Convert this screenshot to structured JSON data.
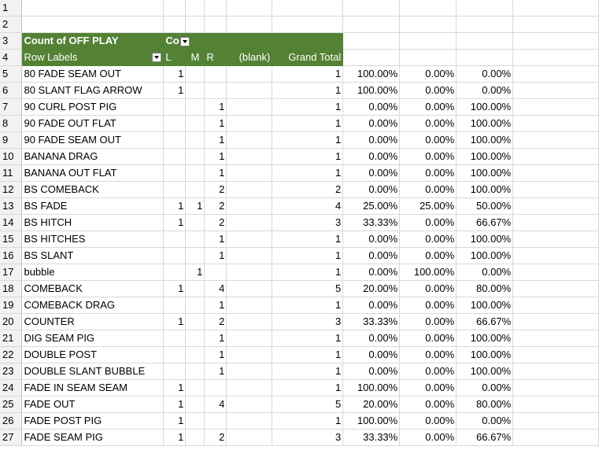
{
  "pivot": {
    "title": "Count of OFF PLAY",
    "col_field_abbrev": "Co",
    "row_labels": "Row Labels",
    "columns": [
      "L",
      "M",
      "R",
      "(blank)",
      "Grand Total"
    ]
  },
  "rows": [
    {
      "num": "5",
      "label": "80 FADE SEAM OUT",
      "L": "1",
      "M": "",
      "R": "",
      "total": "1",
      "p1": "100.00%",
      "p2": "0.00%",
      "p3": "0.00%"
    },
    {
      "num": "6",
      "label": "80 SLANT FLAG ARROW",
      "L": "1",
      "M": "",
      "R": "",
      "total": "1",
      "p1": "100.00%",
      "p2": "0.00%",
      "p3": "0.00%"
    },
    {
      "num": "7",
      "label": "90 CURL POST PIG",
      "L": "",
      "M": "",
      "R": "1",
      "total": "1",
      "p1": "0.00%",
      "p2": "0.00%",
      "p3": "100.00%"
    },
    {
      "num": "8",
      "label": "90 FADE OUT FLAT",
      "L": "",
      "M": "",
      "R": "1",
      "total": "1",
      "p1": "0.00%",
      "p2": "0.00%",
      "p3": "100.00%"
    },
    {
      "num": "9",
      "label": "90 FADE SEAM OUT",
      "L": "",
      "M": "",
      "R": "1",
      "total": "1",
      "p1": "0.00%",
      "p2": "0.00%",
      "p3": "100.00%"
    },
    {
      "num": "10",
      "label": "BANANA DRAG",
      "L": "",
      "M": "",
      "R": "1",
      "total": "1",
      "p1": "0.00%",
      "p2": "0.00%",
      "p3": "100.00%"
    },
    {
      "num": "11",
      "label": "BANANA OUT FLAT",
      "L": "",
      "M": "",
      "R": "1",
      "total": "1",
      "p1": "0.00%",
      "p2": "0.00%",
      "p3": "100.00%"
    },
    {
      "num": "12",
      "label": "BS COMEBACK",
      "L": "",
      "M": "",
      "R": "2",
      "total": "2",
      "p1": "0.00%",
      "p2": "0.00%",
      "p3": "100.00%"
    },
    {
      "num": "13",
      "label": "BS FADE",
      "L": "1",
      "M": "1",
      "R": "2",
      "total": "4",
      "p1": "25.00%",
      "p2": "25.00%",
      "p3": "50.00%"
    },
    {
      "num": "14",
      "label": "BS HITCH",
      "L": "1",
      "M": "",
      "R": "2",
      "total": "3",
      "p1": "33.33%",
      "p2": "0.00%",
      "p3": "66.67%"
    },
    {
      "num": "15",
      "label": "BS HITCHES",
      "L": "",
      "M": "",
      "R": "1",
      "total": "1",
      "p1": "0.00%",
      "p2": "0.00%",
      "p3": "100.00%"
    },
    {
      "num": "16",
      "label": "BS SLANT",
      "L": "",
      "M": "",
      "R": "1",
      "total": "1",
      "p1": "0.00%",
      "p2": "0.00%",
      "p3": "100.00%"
    },
    {
      "num": "17",
      "label": "bubble",
      "L": "",
      "M": "1",
      "R": "",
      "total": "1",
      "p1": "0.00%",
      "p2": "100.00%",
      "p3": "0.00%"
    },
    {
      "num": "18",
      "label": "COMEBACK",
      "L": "1",
      "M": "",
      "R": "4",
      "total": "5",
      "p1": "20.00%",
      "p2": "0.00%",
      "p3": "80.00%"
    },
    {
      "num": "19",
      "label": "COMEBACK DRAG",
      "L": "",
      "M": "",
      "R": "1",
      "total": "1",
      "p1": "0.00%",
      "p2": "0.00%",
      "p3": "100.00%"
    },
    {
      "num": "20",
      "label": "COUNTER",
      "L": "1",
      "M": "",
      "R": "2",
      "total": "3",
      "p1": "33.33%",
      "p2": "0.00%",
      "p3": "66.67%"
    },
    {
      "num": "21",
      "label": "DIG SEAM PIG",
      "L": "",
      "M": "",
      "R": "1",
      "total": "1",
      "p1": "0.00%",
      "p2": "0.00%",
      "p3": "100.00%"
    },
    {
      "num": "22",
      "label": "DOUBLE POST",
      "L": "",
      "M": "",
      "R": "1",
      "total": "1",
      "p1": "0.00%",
      "p2": "0.00%",
      "p3": "100.00%"
    },
    {
      "num": "23",
      "label": "DOUBLE SLANT BUBBLE",
      "L": "",
      "M": "",
      "R": "1",
      "total": "1",
      "p1": "0.00%",
      "p2": "0.00%",
      "p3": "100.00%"
    },
    {
      "num": "24",
      "label": "FADE IN SEAM SEAM",
      "L": "1",
      "M": "",
      "R": "",
      "total": "1",
      "p1": "100.00%",
      "p2": "0.00%",
      "p3": "0.00%"
    },
    {
      "num": "25",
      "label": "FADE OUT",
      "L": "1",
      "M": "",
      "R": "4",
      "total": "5",
      "p1": "20.00%",
      "p2": "0.00%",
      "p3": "80.00%"
    },
    {
      "num": "26",
      "label": "FADE POST PIG",
      "L": "1",
      "M": "",
      "R": "",
      "total": "1",
      "p1": "100.00%",
      "p2": "0.00%",
      "p3": "0.00%"
    },
    {
      "num": "27",
      "label": "FADE SEAM PIG",
      "L": "1",
      "M": "",
      "R": "2",
      "total": "3",
      "p1": "33.33%",
      "p2": "0.00%",
      "p3": "66.67%"
    }
  ],
  "colors": {
    "pivot_header": "#548235",
    "gridline": "#d9d9d9",
    "row_header_bg": "#f2f2f2"
  }
}
